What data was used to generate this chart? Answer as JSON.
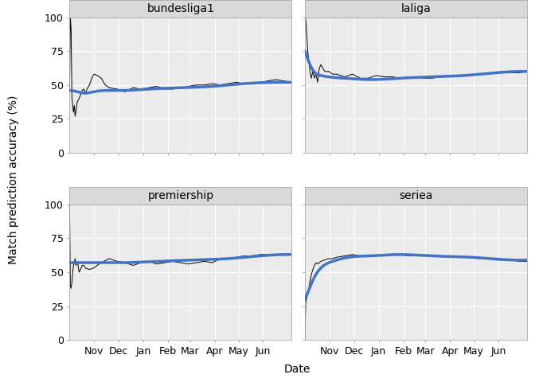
{
  "leagues": [
    "bundesliga1",
    "laliga",
    "premiership",
    "seriea"
  ],
  "ylim": [
    0,
    100
  ],
  "yticks": [
    0,
    25,
    50,
    75,
    100
  ],
  "xlabel": "Date",
  "ylabel": "Match prediction accuracy (%)",
  "plot_bg": "#FFFFFF",
  "outer_bg": "#FFFFFF",
  "strip_bg": "#D9D9D9",
  "grid_color": "#D9D9D9",
  "line_color": "#000000",
  "smooth_color": "#4472C4",
  "smooth_lw": 2.5,
  "raw_lw": 0.7,
  "title_fontsize": 10,
  "axis_fontsize": 10,
  "tick_fontsize": 9,
  "bundesliga1": {
    "raw_x": [
      0,
      1,
      2,
      3,
      4,
      5,
      6,
      7,
      8,
      9,
      10,
      12,
      14,
      16,
      18,
      20,
      22,
      25,
      28,
      31,
      35,
      40,
      45,
      50,
      60,
      70,
      80,
      90,
      100,
      110,
      120,
      130,
      140,
      150,
      160,
      170,
      180,
      190,
      200,
      210,
      220,
      230,
      240,
      250,
      260,
      270,
      280
    ],
    "raw_y": [
      45,
      100,
      90,
      40,
      35,
      30,
      35,
      27,
      30,
      35,
      38,
      40,
      43,
      46,
      47,
      44,
      47,
      50,
      55,
      58,
      57,
      55,
      50,
      48,
      47,
      45,
      48,
      47,
      48,
      49,
      47,
      47,
      48,
      49,
      50,
      50,
      51,
      50,
      51,
      52,
      51,
      51,
      52,
      53,
      54,
      53,
      52
    ],
    "smooth_x": [
      0,
      10,
      20,
      30,
      50,
      70,
      100,
      140,
      180,
      220,
      260,
      280
    ],
    "smooth_y": [
      46,
      45,
      44,
      45,
      46,
      46,
      47,
      48,
      49,
      51,
      52,
      52
    ]
  },
  "laliga": {
    "raw_x": [
      0,
      1,
      2,
      3,
      4,
      5,
      6,
      7,
      8,
      10,
      12,
      14,
      16,
      18,
      20,
      25,
      30,
      35,
      40,
      50,
      60,
      70,
      80,
      90,
      100,
      110,
      120,
      130,
      140,
      150,
      160,
      170,
      180,
      190,
      200,
      210,
      220,
      230,
      240,
      250,
      260,
      270,
      280
    ],
    "raw_y": [
      100,
      98,
      90,
      80,
      72,
      68,
      62,
      58,
      55,
      60,
      55,
      58,
      52,
      62,
      65,
      60,
      60,
      58,
      58,
      56,
      58,
      55,
      55,
      57,
      56,
      56,
      55,
      56,
      56,
      55,
      55,
      56,
      57,
      56,
      57,
      57,
      58,
      58,
      59,
      59,
      59,
      59,
      60
    ],
    "smooth_x": [
      0,
      5,
      10,
      20,
      30,
      50,
      80,
      120,
      160,
      200,
      240,
      280
    ],
    "smooth_y": [
      75,
      67,
      61,
      57,
      56,
      55,
      54,
      55,
      56,
      57,
      59,
      60
    ]
  },
  "premiership": {
    "raw_x": [
      0,
      1,
      2,
      3,
      4,
      5,
      6,
      7,
      8,
      10,
      12,
      14,
      16,
      18,
      20,
      25,
      30,
      35,
      40,
      50,
      60,
      70,
      80,
      90,
      100,
      110,
      120,
      130,
      140,
      150,
      160,
      170,
      180,
      190,
      200,
      210,
      220,
      230,
      240,
      250,
      260,
      270,
      280
    ],
    "raw_y": [
      100,
      40,
      38,
      43,
      50,
      55,
      57,
      60,
      55,
      58,
      50,
      52,
      55,
      55,
      53,
      52,
      53,
      55,
      57,
      60,
      58,
      57,
      55,
      57,
      58,
      56,
      57,
      58,
      57,
      56,
      57,
      58,
      57,
      60,
      60,
      61,
      62,
      62,
      63,
      63,
      63,
      63,
      63
    ],
    "smooth_x": [
      0,
      5,
      10,
      20,
      40,
      70,
      110,
      160,
      200,
      240,
      280
    ],
    "smooth_y": [
      57,
      57,
      57,
      57,
      57,
      57,
      58,
      59,
      60,
      62,
      63
    ]
  },
  "seriea": {
    "raw_x": [
      0,
      1,
      2,
      3,
      4,
      5,
      6,
      7,
      8,
      10,
      12,
      14,
      16,
      18,
      20,
      25,
      30,
      35,
      40,
      50,
      60,
      70,
      80,
      90,
      100,
      110,
      120,
      130,
      140,
      150,
      160,
      170,
      180,
      190,
      200,
      210,
      220,
      230,
      240,
      250,
      260,
      270,
      280
    ],
    "raw_y": [
      0,
      28,
      30,
      33,
      35,
      38,
      42,
      45,
      48,
      52,
      55,
      57,
      56,
      57,
      58,
      59,
      60,
      60,
      61,
      62,
      63,
      62,
      62,
      62,
      62,
      63,
      63,
      62,
      62,
      62,
      62,
      62,
      62,
      62,
      61,
      61,
      60,
      60,
      59,
      59,
      59,
      58,
      58
    ],
    "smooth_x": [
      0,
      5,
      10,
      20,
      35,
      55,
      80,
      120,
      160,
      210,
      260,
      280
    ],
    "smooth_y": [
      30,
      37,
      44,
      53,
      58,
      61,
      62,
      63,
      62,
      61,
      59,
      59
    ]
  },
  "month_ticks_offsets": [
    31,
    62,
    93,
    124,
    152,
    183,
    213,
    244
  ],
  "month_labels": [
    "Nov",
    "Dec",
    "Jan",
    "Feb",
    "Mar",
    "Apr",
    "May",
    "Jun"
  ]
}
